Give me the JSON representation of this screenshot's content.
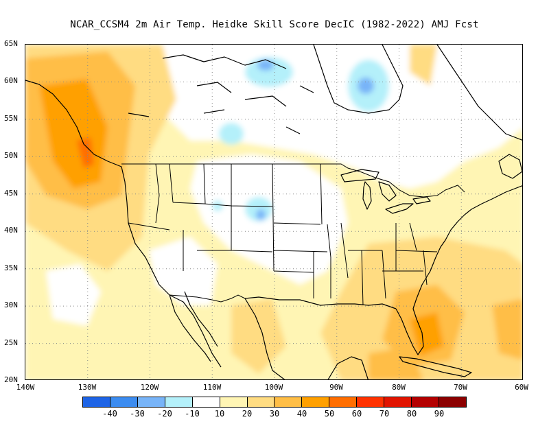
{
  "title": "NCAR_CCSM4  2m Air Temp. Heidke Skill Score DecIC (1982-2022) AMJ Fcst",
  "map": {
    "lat_labels": [
      "65N",
      "60N",
      "55N",
      "50N",
      "45N",
      "40N",
      "35N",
      "30N",
      "25N",
      "20N"
    ],
    "lon_labels": [
      "140W",
      "130W",
      "120W",
      "110W",
      "100W",
      "90W",
      "80W",
      "70W",
      "60W"
    ],
    "lat_range": [
      20,
      65
    ],
    "lon_range": [
      -140,
      -60
    ],
    "gridlines": "dotted",
    "projection": "lat-lon"
  },
  "legend": {
    "colors": [
      "#1e64e6",
      "#3c8cf0",
      "#78b4f8",
      "#b4f0fa",
      "#ffffff",
      "#fff5b4",
      "#ffdc82",
      "#ffbe46",
      "#ffa000",
      "#ff6e00",
      "#ff3200",
      "#e11400",
      "#b40000",
      "#8c0000"
    ],
    "labels": [
      "-40",
      "-30",
      "-20",
      "-10",
      "10",
      "20",
      "30",
      "40",
      "50",
      "60",
      "70",
      "80",
      "90"
    ]
  }
}
